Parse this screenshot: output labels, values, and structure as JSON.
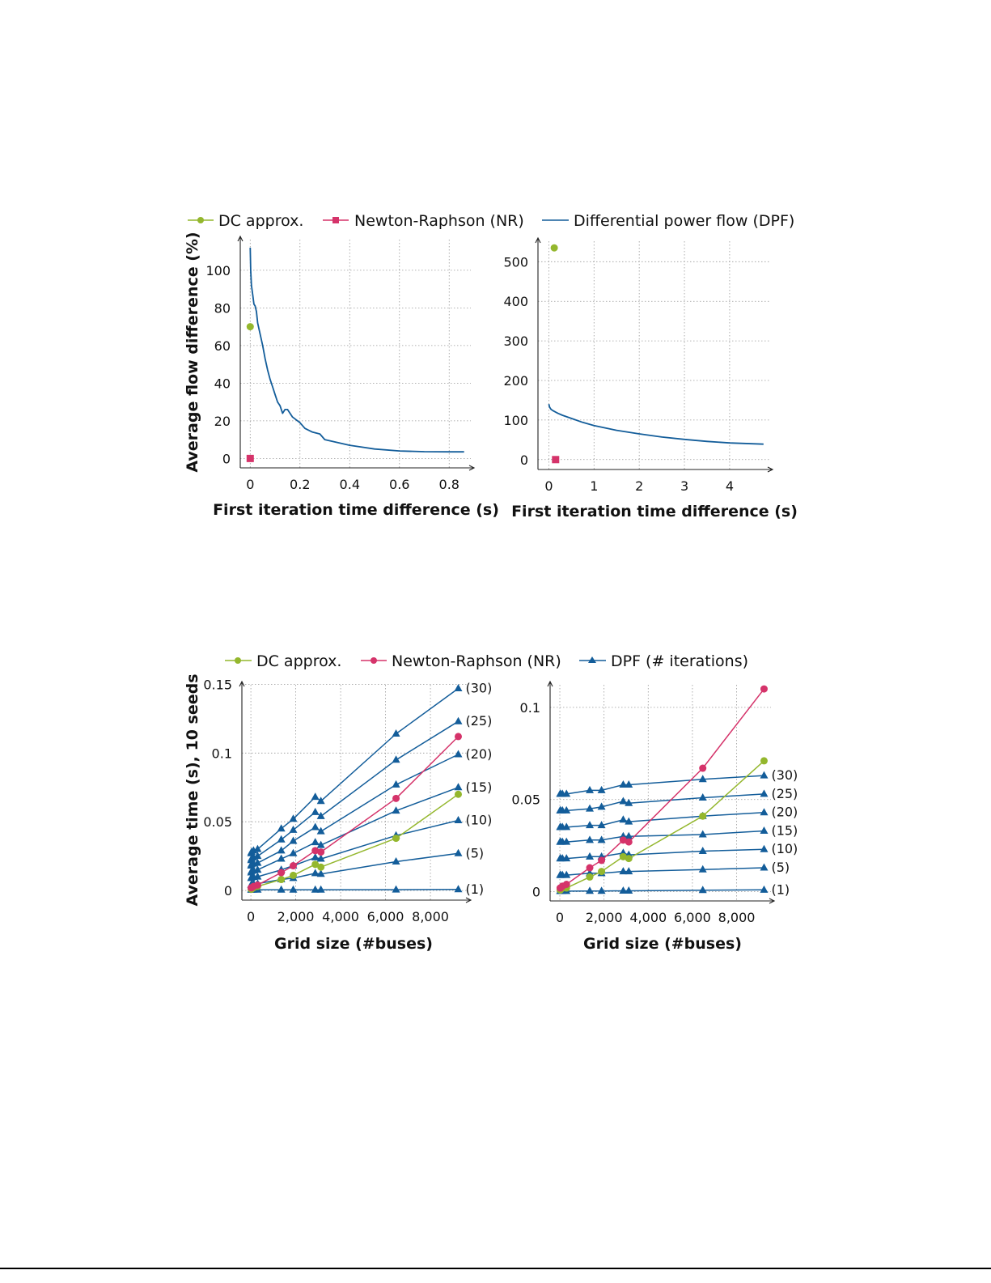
{
  "colors": {
    "dc": "#94b72d",
    "nr": "#d5336a",
    "dpf": "#135d9a"
  },
  "legends": [
    {
      "dc": "DC approx.",
      "nr": "Newton-Raphson (NR)",
      "dpf": "Differential power flow (DPF)"
    },
    {
      "dc": "DC approx.",
      "nr": "Newton-Raphson (NR)",
      "dpf": "DPF (# iterations)"
    }
  ],
  "chart_data": [
    {
      "type": "line",
      "xlabel": "First iteration time difference (s)",
      "ylabel": "Average flow difference (%)",
      "xticks": [
        0,
        0.2,
        0.4,
        0.6,
        0.8
      ],
      "xtick_labels": [
        "0",
        "0.2",
        "0.4",
        "0.6",
        "0.8"
      ],
      "yticks": [
        0,
        20,
        40,
        60,
        80,
        100
      ],
      "ytick_labels": [
        "0",
        "20",
        "40",
        "60",
        "80",
        "100"
      ],
      "xlim": [
        -0.04,
        0.9
      ],
      "ylim": [
        -5,
        118
      ],
      "grid": true,
      "series": [
        {
          "name": "DC approx.",
          "kind": "dc",
          "marker": "circle",
          "x": [
            0.0
          ],
          "y": [
            70
          ]
        },
        {
          "name": "Newton-Raphson (NR)",
          "kind": "nr",
          "marker": "square",
          "x": [
            0.0
          ],
          "y": [
            0
          ]
        },
        {
          "name": "Differential power flow (DPF)",
          "kind": "dpf",
          "marker": "none",
          "x": [
            0,
            0.002,
            0.005,
            0.01,
            0.015,
            0.02,
            0.025,
            0.03,
            0.04,
            0.05,
            0.06,
            0.07,
            0.08,
            0.09,
            0.1,
            0.11,
            0.12,
            0.13,
            0.14,
            0.15,
            0.17,
            0.2,
            0.22,
            0.25,
            0.28,
            0.3,
            0.35,
            0.4,
            0.45,
            0.5,
            0.6,
            0.7,
            0.8,
            0.86
          ],
          "y": [
            112,
            100,
            92,
            87,
            82,
            81,
            78,
            72,
            66,
            60,
            53,
            47,
            42,
            38,
            34,
            30,
            28,
            24,
            26,
            26,
            22,
            19,
            16,
            14,
            13,
            10,
            8.5,
            7,
            6,
            5,
            4,
            3.6,
            3.5,
            3.5
          ]
        }
      ]
    },
    {
      "type": "line",
      "xlabel": "First iteration time difference (s)",
      "ylabel": "",
      "xticks": [
        0,
        1,
        2,
        3,
        4
      ],
      "xtick_labels": [
        "0",
        "1",
        "2",
        "3",
        "4"
      ],
      "yticks": [
        0,
        100,
        200,
        300,
        400,
        500
      ],
      "ytick_labels": [
        "0",
        "100",
        "200",
        "300",
        "400",
        "500"
      ],
      "xlim": [
        -0.24,
        4.95
      ],
      "ylim": [
        -25,
        560
      ],
      "grid": true,
      "series": [
        {
          "name": "DC approx.",
          "kind": "dc",
          "marker": "circle",
          "x": [
            0.12
          ],
          "y": [
            535
          ]
        },
        {
          "name": "Newton-Raphson (NR)",
          "kind": "nr",
          "marker": "square",
          "x": [
            0.15
          ],
          "y": [
            0
          ]
        },
        {
          "name": "Differential power flow (DPF)",
          "kind": "dpf",
          "marker": "none",
          "x": [
            0,
            0.02,
            0.05,
            0.1,
            0.2,
            0.3,
            0.5,
            0.75,
            1,
            1.5,
            2,
            2.5,
            3,
            3.5,
            4,
            4.5,
            4.75
          ],
          "y": [
            140,
            132,
            127,
            123,
            117,
            112,
            104,
            94,
            86,
            74,
            65,
            57,
            51,
            46,
            42,
            40,
            39
          ]
        }
      ]
    },
    {
      "type": "line",
      "xlabel": "Grid size (#buses)",
      "ylabel": "Average time (s), 10 seeds",
      "xticks": [
        0,
        2000,
        4000,
        6000,
        8000
      ],
      "xtick_labels": [
        "0",
        "2,000",
        "4,000",
        "6,000",
        "8,000"
      ],
      "yticks": [
        0,
        0.05,
        0.1,
        0.15
      ],
      "ytick_labels": [
        "0",
        "0.05",
        "0.1",
        "0.15"
      ],
      "xlim": [
        -400,
        9800
      ],
      "ylim": [
        -0.007,
        0.152
      ],
      "grid": true,
      "x": [
        14,
        30,
        118,
        300,
        1354,
        1888,
        2869,
        3120,
        6468,
        9241
      ],
      "series": [
        {
          "name": "DC approx.",
          "kind": "dc",
          "marker": "circle",
          "y": [
            0.001,
            0.001,
            0.002,
            0.003,
            0.008,
            0.011,
            0.019,
            0.017,
            0.038,
            0.07
          ]
        },
        {
          "name": "Newton-Raphson (NR)",
          "kind": "nr",
          "marker": "circle",
          "y": [
            0.002,
            0.002,
            0.003,
            0.004,
            0.013,
            0.018,
            0.029,
            0.028,
            0.067,
            0.112
          ]
        },
        {
          "name": "(1)",
          "kind": "dpf",
          "marker": "triangle",
          "y": [
            0.0005,
            0.0005,
            0.0005,
            0.0005,
            0.0005,
            0.0005,
            0.0005,
            0.0005,
            0.0006,
            0.0008
          ]
        },
        {
          "name": "(5)",
          "kind": "dpf",
          "marker": "triangle",
          "y": [
            0.004,
            0.0045,
            0.0048,
            0.005,
            0.008,
            0.009,
            0.0125,
            0.012,
            0.021,
            0.027
          ]
        },
        {
          "name": "(10)",
          "kind": "dpf",
          "marker": "triangle",
          "y": [
            0.009,
            0.0095,
            0.0098,
            0.01,
            0.015,
            0.018,
            0.024,
            0.023,
            0.04,
            0.051
          ]
        },
        {
          "name": "(15)",
          "kind": "dpf",
          "marker": "triangle",
          "y": [
            0.013,
            0.014,
            0.0145,
            0.015,
            0.023,
            0.027,
            0.035,
            0.033,
            0.058,
            0.075
          ]
        },
        {
          "name": "(20)",
          "kind": "dpf",
          "marker": "triangle",
          "y": [
            0.018,
            0.019,
            0.0195,
            0.02,
            0.029,
            0.036,
            0.046,
            0.043,
            0.077,
            0.099
          ]
        },
        {
          "name": "(25)",
          "kind": "dpf",
          "marker": "triangle",
          "y": [
            0.022,
            0.023,
            0.024,
            0.025,
            0.037,
            0.044,
            0.057,
            0.054,
            0.095,
            0.123
          ]
        },
        {
          "name": "(30)",
          "kind": "dpf",
          "marker": "triangle",
          "y": [
            0.027,
            0.028,
            0.029,
            0.03,
            0.045,
            0.052,
            0.068,
            0.065,
            0.114,
            0.147
          ]
        }
      ]
    },
    {
      "type": "line",
      "xlabel": "Grid size (#buses)",
      "ylabel": "",
      "xticks": [
        0,
        2000,
        4000,
        6000,
        8000
      ],
      "xtick_labels": [
        "0",
        "2,000",
        "4,000",
        "6,000",
        "8,000"
      ],
      "yticks": [
        0,
        0.05,
        0.1
      ],
      "ytick_labels": [
        "0",
        "0.05",
        "0.1"
      ],
      "xlim": [
        -440,
        9700
      ],
      "ylim": [
        -0.005,
        0.114
      ],
      "grid": true,
      "x": [
        14,
        30,
        118,
        300,
        1354,
        1888,
        2869,
        3120,
        6468,
        9241
      ],
      "series": [
        {
          "name": "DC approx.",
          "kind": "dc",
          "marker": "circle",
          "y": [
            0.001,
            0.001,
            0.002,
            0.002,
            0.008,
            0.011,
            0.019,
            0.018,
            0.041,
            0.071
          ]
        },
        {
          "name": "Newton-Raphson (NR)",
          "kind": "nr",
          "marker": "circle",
          "y": [
            0.002,
            0.002,
            0.003,
            0.004,
            0.013,
            0.017,
            0.028,
            0.027,
            0.067,
            0.11
          ]
        },
        {
          "name": "(1)",
          "kind": "dpf",
          "marker": "triangle",
          "y": [
            0.0003,
            0.0003,
            0.0003,
            0.0003,
            0.0004,
            0.0004,
            0.0005,
            0.0005,
            0.0008,
            0.001
          ]
        },
        {
          "name": "(5)",
          "kind": "dpf",
          "marker": "triangle",
          "y": [
            0.009,
            0.009,
            0.009,
            0.009,
            0.01,
            0.01,
            0.011,
            0.011,
            0.012,
            0.013
          ]
        },
        {
          "name": "(10)",
          "kind": "dpf",
          "marker": "triangle",
          "y": [
            0.018,
            0.018,
            0.018,
            0.018,
            0.019,
            0.019,
            0.021,
            0.02,
            0.022,
            0.023
          ]
        },
        {
          "name": "(15)",
          "kind": "dpf",
          "marker": "triangle",
          "y": [
            0.027,
            0.027,
            0.027,
            0.027,
            0.028,
            0.028,
            0.03,
            0.03,
            0.031,
            0.033
          ]
        },
        {
          "name": "(20)",
          "kind": "dpf",
          "marker": "triangle",
          "y": [
            0.035,
            0.035,
            0.035,
            0.035,
            0.036,
            0.036,
            0.039,
            0.038,
            0.041,
            0.043
          ]
        },
        {
          "name": "(25)",
          "kind": "dpf",
          "marker": "triangle",
          "y": [
            0.044,
            0.044,
            0.044,
            0.044,
            0.045,
            0.046,
            0.049,
            0.048,
            0.051,
            0.053
          ]
        },
        {
          "name": "(30)",
          "kind": "dpf",
          "marker": "triangle",
          "y": [
            0.053,
            0.053,
            0.053,
            0.053,
            0.055,
            0.055,
            0.058,
            0.058,
            0.061,
            0.063
          ]
        }
      ]
    }
  ]
}
